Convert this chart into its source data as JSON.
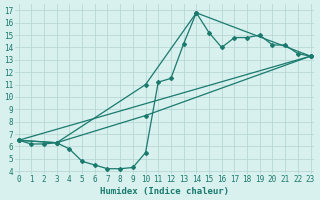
{
  "xlabel": "Humidex (Indice chaleur)",
  "bg_color": "#d8f0ee",
  "grid_color": "#b8d8d4",
  "line_color": "#1a7a6e",
  "xticks": [
    0,
    1,
    2,
    3,
    4,
    5,
    6,
    7,
    8,
    9,
    10,
    11,
    12,
    13,
    14,
    15,
    16,
    17,
    18,
    19,
    20,
    21,
    22,
    23
  ],
  "yticks": [
    4,
    5,
    6,
    7,
    8,
    9,
    10,
    11,
    12,
    13,
    14,
    15,
    16,
    17
  ],
  "xlim": [
    -0.3,
    23.3
  ],
  "ylim": [
    3.8,
    17.5
  ],
  "line1_x": [
    0,
    1,
    2,
    3,
    4,
    5,
    6,
    7,
    8,
    9,
    10,
    11,
    12,
    13,
    14,
    15,
    16,
    17,
    18,
    19,
    20,
    21,
    22,
    23
  ],
  "line1_y": [
    6.5,
    6.2,
    6.2,
    6.3,
    5.8,
    4.8,
    4.5,
    4.2,
    4.2,
    4.3,
    5.5,
    11.2,
    11.5,
    14.3,
    16.8,
    15.2,
    14.0,
    14.8,
    14.8,
    15.0,
    14.2,
    14.2,
    13.5,
    13.3
  ],
  "line2_x": [
    0,
    3,
    10,
    14,
    23
  ],
  "line2_y": [
    6.5,
    6.3,
    11.0,
    16.8,
    13.3
  ],
  "line3_x": [
    0,
    3,
    10,
    23
  ],
  "line3_y": [
    6.5,
    6.3,
    8.5,
    13.3
  ],
  "line4_x": [
    0,
    23
  ],
  "line4_y": [
    6.5,
    13.3
  ]
}
